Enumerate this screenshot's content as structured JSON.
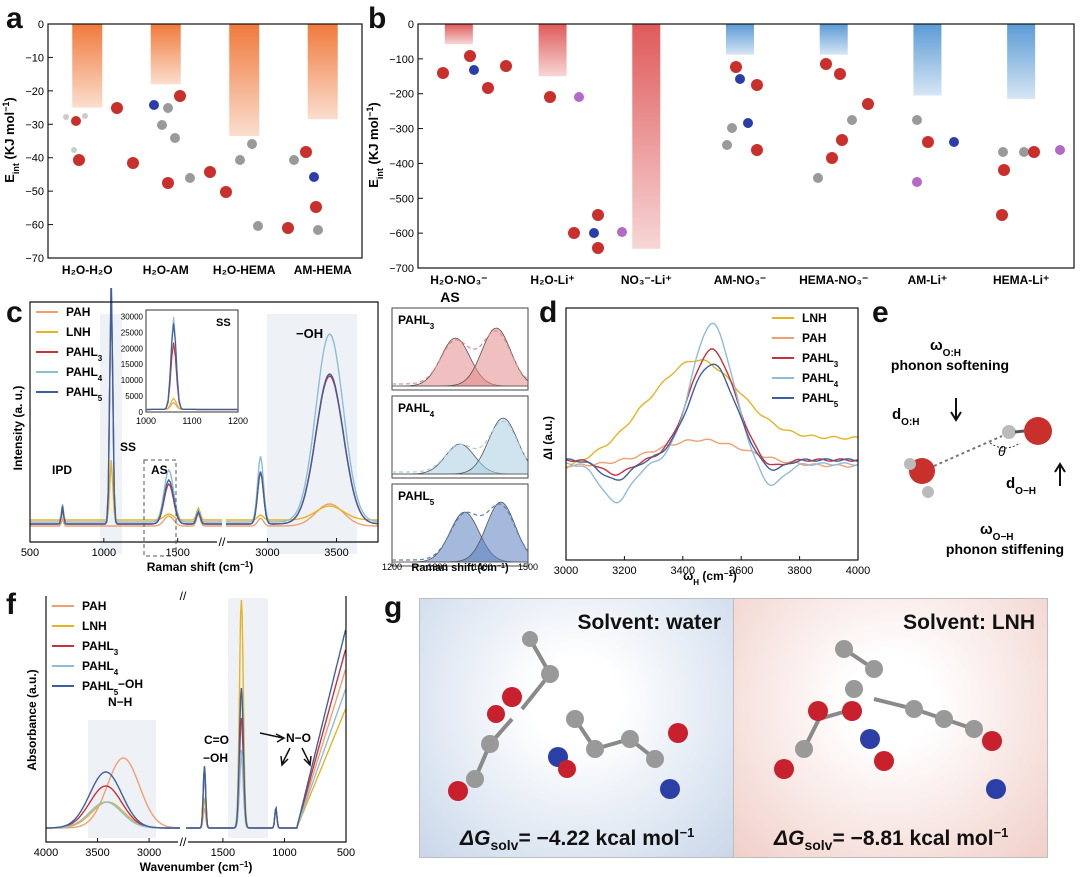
{
  "panels": {
    "a": {
      "label": "a"
    },
    "b": {
      "label": "b"
    },
    "c": {
      "label": "c"
    },
    "d": {
      "label": "d"
    },
    "e": {
      "label": "e"
    },
    "f": {
      "label": "f"
    },
    "g": {
      "label": "g"
    }
  },
  "chart_data": [
    {
      "id": "a",
      "type": "bar",
      "ylabel": "E",
      "ylabel_sub": "int",
      "ylabel_unit": " (KJ mol",
      "ylabel_unit_sup": "−1",
      "ylabel_close": ")",
      "categories": [
        "H2O-H2O",
        "H2O-AM",
        "H2O-HEMA",
        "AM-HEMA"
      ],
      "category_labels": [
        "H₂O-H₂O",
        "H₂O-AM",
        "H₂O-HEMA",
        "AM-HEMA"
      ],
      "values": [
        -25,
        -18,
        -33.5,
        -28.5
      ],
      "ylim": [
        -70,
        0
      ],
      "yticks": [
        0,
        -10,
        -20,
        -30,
        -40,
        -50,
        -60,
        -70
      ],
      "color": "#f07a3c"
    },
    {
      "id": "b",
      "type": "bar",
      "ylabel": "E",
      "ylabel_sub": "int",
      "ylabel_unit": " (KJ mol",
      "ylabel_unit_sup": "−1",
      "ylabel_close": ")",
      "categories": [
        "H2O-NO3-",
        "H2O-Li+",
        "NO3--Li+",
        "AM-NO3-",
        "HEMA-NO3-",
        "AM-Li+",
        "HEMA-Li+"
      ],
      "category_labels": [
        "H₂O-NO₃⁻",
        "H₂O-Li⁺",
        "NO₃⁻-Li⁺",
        "AM-NO₃⁻",
        "HEMA-NO₃⁻",
        "AM-Li⁺",
        "HEMA-Li⁺"
      ],
      "values": [
        -58,
        -150,
        -645,
        -88,
        -88,
        -205,
        -215
      ],
      "colors": [
        "#e05a5a",
        "#e05a5a",
        "#e05a5a",
        "#5b9bd5",
        "#5b9bd5",
        "#5b9bd5",
        "#5b9bd5"
      ],
      "ylim": [
        -700,
        0
      ],
      "yticks": [
        0,
        -100,
        -200,
        -300,
        -400,
        -500,
        -600,
        -700
      ]
    },
    {
      "id": "c",
      "type": "line",
      "xlabel": "Raman shift (cm",
      "xlabel_sup": "−1",
      "xlabel_close": ")",
      "ylabel": "Intensity (a. u.)",
      "xticks_left": [
        500,
        1000,
        1500
      ],
      "xticks_right": [
        3000,
        3500
      ],
      "annotations": [
        "IPD",
        "SS",
        "AS",
        "−OH"
      ],
      "inset": {
        "label": "SS",
        "xticks": [
          1000,
          1100,
          1200
        ],
        "yticks": [
          0,
          5000,
          10000,
          15000,
          20000,
          25000,
          30000
        ]
      },
      "series": [
        {
          "name": "PAH",
          "color": "#f0a070"
        },
        {
          "name": "LNH",
          "color": "#e6b422"
        },
        {
          "name": "PAHL3",
          "color": "#c8323c"
        },
        {
          "name": "PAHL4",
          "color": "#8fbcd8"
        },
        {
          "name": "PAHL5",
          "color": "#3f5f9c"
        }
      ],
      "legend_labels": [
        "PAH",
        "LNH",
        "PAHL",
        "PAHL",
        "PAHL"
      ],
      "legend_subs": [
        "",
        "",
        "3",
        "4",
        "5"
      ],
      "fit_title": "AS",
      "fit_panels": [
        {
          "name": "PAHL",
          "sub": "3",
          "color": "#e48a8a"
        },
        {
          "name": "PAHL",
          "sub": "4",
          "color": "#a8cde2"
        },
        {
          "name": "PAHL",
          "sub": "5",
          "color": "#5a7fbf"
        }
      ],
      "fit_xticks": [
        1200,
        1300,
        1400,
        1500
      ],
      "fit_xlabel": "Raman shift (cm",
      "fit_xlabel_sup": "−1",
      "fit_xlabel_close": ")"
    },
    {
      "id": "d",
      "type": "line",
      "xlabel": "ω",
      "xlabel_sub": "H",
      "xlabel_unit": " (cm",
      "xlabel_sup": "−1",
      "xlabel_close": ")",
      "ylabel": "ΔI (a.u.)",
      "xlim": [
        3000,
        4000
      ],
      "xticks": [
        3000,
        3200,
        3400,
        3600,
        3800,
        4000
      ],
      "series": [
        {
          "name": "LNH",
          "color": "#e6b422"
        },
        {
          "name": "PAH",
          "color": "#f0a070"
        },
        {
          "name": "PAHL3",
          "color": "#c8323c"
        },
        {
          "name": "PAHL4",
          "color": "#8fbcd8"
        },
        {
          "name": "PAHL5",
          "color": "#3f5f9c"
        }
      ],
      "legend_labels": [
        "LNH",
        "PAH",
        "PAHL",
        "PAHL",
        "PAHL"
      ],
      "legend_subs": [
        "",
        "",
        "3",
        "4",
        "5"
      ]
    },
    {
      "id": "f",
      "type": "line",
      "xlabel": "Wavenumber (cm",
      "xlabel_sup": "−1",
      "xlabel_close": ")",
      "ylabel": "Absorbance (a.u.)",
      "xticks_left": [
        4000,
        3500,
        3000
      ],
      "xticks_right": [
        1500,
        1000,
        500
      ],
      "annotations": [
        "−OH",
        "N−H",
        "C=O",
        "−OH",
        "N−O"
      ],
      "series": [
        {
          "name": "PAH",
          "color": "#f0a070"
        },
        {
          "name": "LNH",
          "color": "#e6b422"
        },
        {
          "name": "PAHL3",
          "color": "#c8323c"
        },
        {
          "name": "PAHL4",
          "color": "#8fbcd8"
        },
        {
          "name": "PAHL5",
          "color": "#3f5f9c"
        }
      ],
      "legend_labels": [
        "PAH",
        "LNH",
        "PAHL",
        "PAHL",
        "PAHL"
      ],
      "legend_subs": [
        "",
        "",
        "3",
        "4",
        "5"
      ]
    }
  ],
  "schematic_e": {
    "omega_OH_top": "ω",
    "omega_OH_top_sub": "O:H",
    "softening": "phonon softening",
    "d_OH_label": "d",
    "d_OH_sub": "O:H",
    "theta": "θ",
    "d_OH2_label": "d",
    "d_OH2_sub": "O−H",
    "omega_OH_bottom": "ω",
    "omega_OH_bottom_sub": "O−H",
    "stiffening": "phonon stiffening"
  },
  "panel_g": {
    "left": {
      "title": "Solvent: water",
      "delta": "ΔG",
      "sub": "solv",
      "value": "= −4.22 kcal mol",
      "sup": "−1"
    },
    "right": {
      "title": "Solvent: LNH",
      "delta": "ΔG",
      "sub": "solv",
      "value": "= −8.81 kcal mol",
      "sup": "−1"
    }
  }
}
